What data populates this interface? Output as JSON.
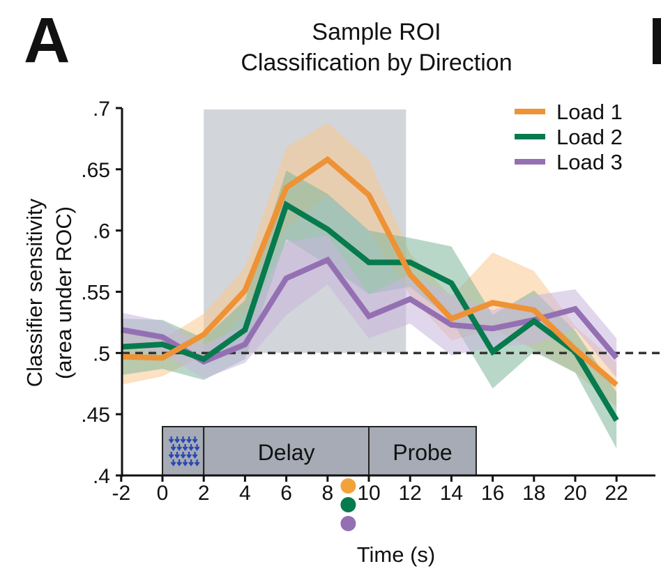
{
  "panel_label": "A",
  "chart_data": {
    "type": "line",
    "title": "Sample ROI",
    "subtitle": "Classification by Direction",
    "xlabel": "Time (s)",
    "ylabel_line1": "Classifier sensitivity",
    "ylabel_line2": "(area under ROC)",
    "xlim": [
      -2,
      23
    ],
    "ylim": [
      0.4,
      0.7
    ],
    "x": [
      -2,
      0,
      2,
      4,
      6,
      8,
      10,
      12,
      14,
      16,
      18,
      20,
      22
    ],
    "x_tick_labels": [
      "-2",
      "0",
      "2",
      "4",
      "6",
      "8",
      "10",
      "12",
      "14",
      "16",
      "18",
      "20",
      "22"
    ],
    "y_ticks": [
      0.4,
      0.45,
      0.5,
      0.55,
      0.6,
      0.65,
      0.7
    ],
    "y_tick_labels": [
      ".4",
      ".45",
      ".5",
      ".55",
      ".6",
      ".65",
      ".7"
    ],
    "chance_level": 0.5,
    "shaded_window": [
      2,
      11.8
    ],
    "legend_position": "top-right",
    "series": [
      {
        "name": "Load 1",
        "color": "#EE9236",
        "band_color": "#F9C98F",
        "values": [
          0.497,
          0.496,
          0.515,
          0.551,
          0.635,
          0.658,
          0.629,
          0.564,
          0.528,
          0.541,
          0.535,
          0.503,
          0.474
        ],
        "lower": [
          0.474,
          0.481,
          0.498,
          0.532,
          0.602,
          0.628,
          0.6,
          0.547,
          0.51,
          0.52,
          0.503,
          0.484,
          0.456
        ],
        "upper": [
          0.52,
          0.511,
          0.532,
          0.57,
          0.668,
          0.688,
          0.658,
          0.581,
          0.546,
          0.582,
          0.567,
          0.522,
          0.492
        ]
      },
      {
        "name": "Load 2",
        "color": "#077A4E",
        "band_color": "#7FB79A",
        "values": [
          0.505,
          0.507,
          0.495,
          0.519,
          0.621,
          0.601,
          0.574,
          0.574,
          0.557,
          0.501,
          0.526,
          0.501,
          0.445
        ],
        "lower": [
          0.482,
          0.487,
          0.478,
          0.495,
          0.593,
          0.572,
          0.548,
          0.554,
          0.527,
          0.471,
          0.501,
          0.484,
          0.422
        ],
        "upper": [
          0.528,
          0.527,
          0.512,
          0.543,
          0.649,
          0.63,
          0.6,
          0.594,
          0.587,
          0.531,
          0.551,
          0.518,
          0.468
        ]
      },
      {
        "name": "Load 3",
        "color": "#9470B3",
        "band_color": "#C9B7DF",
        "values": [
          0.519,
          0.513,
          0.493,
          0.507,
          0.561,
          0.576,
          0.53,
          0.544,
          0.523,
          0.52,
          0.527,
          0.536,
          0.496
        ],
        "lower": [
          0.505,
          0.5,
          0.479,
          0.492,
          0.531,
          0.556,
          0.512,
          0.524,
          0.498,
          0.505,
          0.507,
          0.52,
          0.48
        ],
        "upper": [
          0.533,
          0.526,
          0.507,
          0.522,
          0.591,
          0.596,
          0.548,
          0.564,
          0.548,
          0.535,
          0.547,
          0.552,
          0.512
        ]
      }
    ],
    "trial_phases": [
      {
        "label": "",
        "start": 0,
        "end": 2,
        "icon": "arrow-field-icon"
      },
      {
        "label": "Delay",
        "start": 2,
        "end": 10
      },
      {
        "label": "Probe",
        "start": 10,
        "end": 15.2
      }
    ],
    "peak_markers": [
      {
        "series": "Load 1",
        "x": 9,
        "color": "#F2A23A"
      },
      {
        "series": "Load 2",
        "x": 9,
        "color": "#077A4E"
      },
      {
        "series": "Load 3",
        "x": 9,
        "color": "#9470B3"
      }
    ]
  }
}
